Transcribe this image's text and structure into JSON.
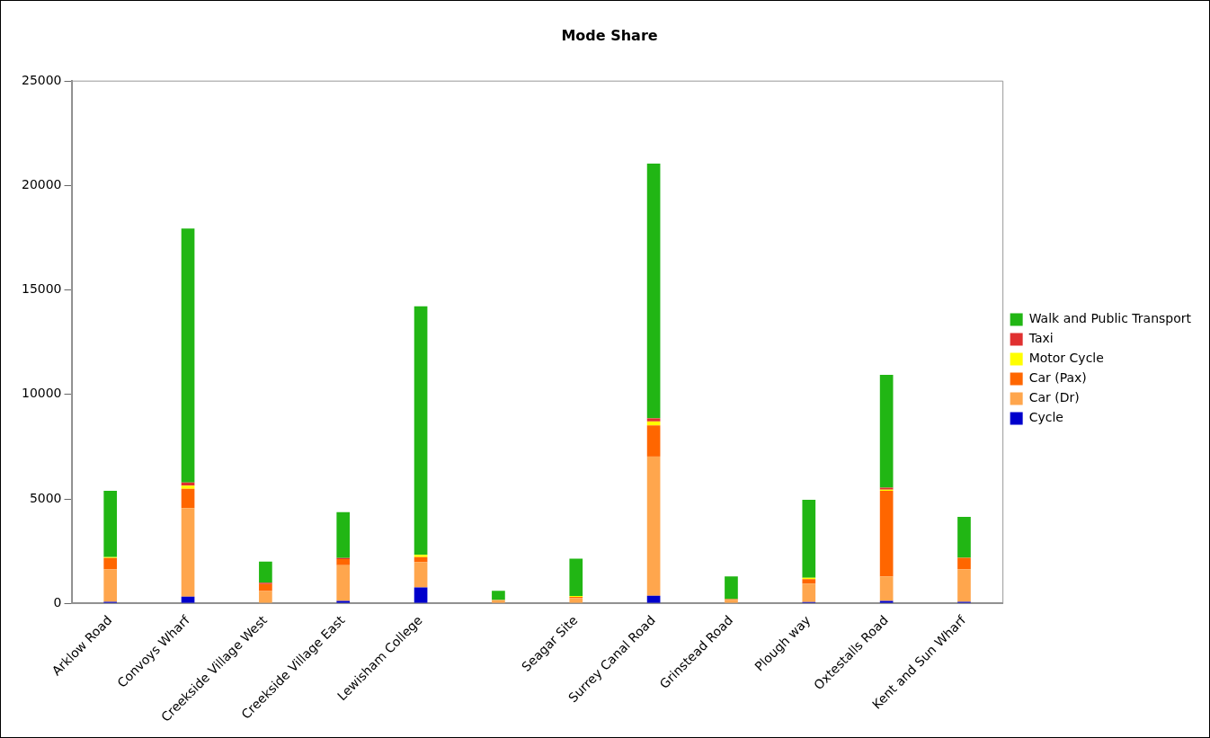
{
  "chart_data": {
    "type": "bar",
    "title": "Mode Share",
    "stacked": true,
    "legend": "right",
    "grid": false,
    "categories": [
      "Arklow Road",
      "Convoys Wharf",
      "Creekside Village West",
      "Creekside Village East",
      "Lewisham College",
      null,
      "Seagar Site",
      "Surrey Canal Road",
      "Grinstead Road",
      "Plough way",
      "Oxtestalls Road",
      "Kent and Sun Wharf"
    ],
    "ylim": [
      0,
      25000
    ],
    "yticks": [
      0,
      5000,
      10000,
      15000,
      20000,
      25000
    ],
    "series": [
      {
        "name": "Cycle",
        "color": "#0000cc",
        "values": [
          80,
          320,
          null,
          120,
          760,
          null,
          null,
          370,
          null,
          70,
          120,
          80
        ]
      },
      {
        "name": "Car (Dr)",
        "color": "#ffa64d",
        "values": [
          1560,
          4240,
          590,
          1710,
          1220,
          160,
          260,
          6660,
          160,
          880,
          1170,
          1560
        ]
      },
      {
        "name": "Car (Pax)",
        "color": "#ff6600",
        "values": [
          530,
          930,
          340,
          290,
          240,
          0,
          50,
          1490,
          50,
          210,
          4100,
          550
        ]
      },
      {
        "name": "Motor Cycle",
        "color": "#ffff00",
        "values": [
          50,
          150,
          0,
          0,
          100,
          0,
          50,
          190,
          0,
          70,
          50,
          null
        ]
      },
      {
        "name": "Taxi",
        "color": "#e03030",
        "values": [
          0,
          150,
          60,
          50,
          0,
          0,
          0,
          150,
          0,
          0,
          100,
          0
        ]
      },
      {
        "name": "Walk and Public Transport",
        "color": "#21b614",
        "values": [
          3170,
          12150,
          1010,
          2200,
          11900,
          440,
          1780,
          12190,
          1080,
          3730,
          5400,
          1950
        ]
      }
    ]
  }
}
